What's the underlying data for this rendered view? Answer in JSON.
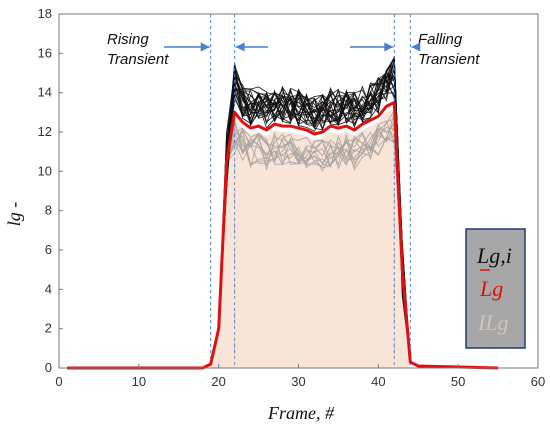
{
  "chart_data": {
    "type": "line",
    "xlabel": "Frame, #",
    "ylabel": "lg -",
    "xlim": [
      0,
      60
    ],
    "ylim": [
      0,
      18
    ],
    "xticks": [
      0,
      10,
      20,
      30,
      40,
      50,
      60
    ],
    "yticks": [
      0,
      2,
      4,
      6,
      8,
      10,
      12,
      14,
      16,
      18
    ],
    "grid": false,
    "annotations": {
      "rising": [
        "Rising",
        "Transient"
      ],
      "falling": [
        "Falling",
        "Transient"
      ]
    },
    "transient_bounds": [
      19,
      22,
      42,
      44
    ],
    "legend": {
      "placement": "bottom-right",
      "entries": [
        {
          "text": "Lg,i",
          "color": "#111111"
        },
        {
          "text": "Lg",
          "color": "#e01010"
        },
        {
          "text": "ILg",
          "color": "#d4c3bb"
        }
      ]
    },
    "colors": {
      "individual": "#111111",
      "mean": "#e01010",
      "band": "#f9e4d8",
      "lower_traces": "#a8a39f",
      "transient_lines": "#4a7fd0",
      "arrows": "#4a7fd0",
      "legend_bg": "#a7a7a7",
      "legend_border": "#1f3a73"
    },
    "mean_series": {
      "x": [
        1,
        18,
        19,
        20,
        21,
        22,
        23,
        24,
        25,
        26,
        27,
        28,
        29,
        30,
        31,
        32,
        33,
        34,
        35,
        36,
        37,
        38,
        39,
        40,
        41,
        42,
        43,
        44,
        45,
        55
      ],
      "y": [
        0,
        0,
        0.2,
        2.0,
        10.5,
        13.0,
        12.5,
        12.2,
        12.3,
        12.1,
        12.4,
        12.3,
        12.3,
        12.2,
        12.1,
        11.9,
        12.0,
        12.3,
        12.2,
        12.3,
        12.1,
        12.4,
        12.6,
        12.8,
        13.3,
        13.5,
        5.0,
        0.3,
        0.1,
        0
      ]
    },
    "series_count": 25
  }
}
